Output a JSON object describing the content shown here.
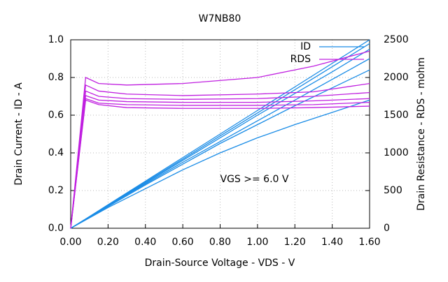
{
  "chart_data": {
    "type": "line",
    "title": "W7NB80",
    "x_label": "Drain-Source Voltage - VDS - V",
    "y_label": "Drain Current - ID - A",
    "y2_label": "Drain Resistance - RDS - mohm",
    "annotation": "VGS >= 6.0 V",
    "xlim": [
      0,
      1.6
    ],
    "xticks": [
      {
        "value": 0,
        "label": "0.00"
      },
      {
        "value": 0.2,
        "label": "0.20"
      },
      {
        "value": 0.4,
        "label": "0.40"
      },
      {
        "value": 0.6,
        "label": "0.60"
      },
      {
        "value": 0.8,
        "label": "0.80"
      },
      {
        "value": 1.0,
        "label": "1.00"
      },
      {
        "value": 1.2,
        "label": "1.20"
      },
      {
        "value": 1.4,
        "label": "1.40"
      },
      {
        "value": 1.6,
        "label": "1.60"
      }
    ],
    "ylim": [
      0,
      1
    ],
    "yticks": [
      {
        "value": 0,
        "label": "0.0"
      },
      0.2,
      0.4,
      0.6,
      0.8,
      {
        "value": 1,
        "label": "1.0"
      }
    ],
    "y2lim": [
      0,
      2500
    ],
    "y2ticks": [
      0,
      500,
      1000,
      1500,
      2000,
      2500
    ],
    "grid": true,
    "legend": "top-right",
    "series": [
      {
        "name": "ID",
        "color": "#1a8ce6",
        "x": [
          0,
          0.1,
          0.2,
          0.4,
          0.6,
          0.8,
          1.0,
          1.2,
          1.4,
          1.6
        ],
        "curves": [
          [
            0,
            0.062,
            0.125,
            0.25,
            0.375,
            0.5,
            0.625,
            0.75,
            0.875,
            1.0
          ],
          [
            0,
            0.061,
            0.122,
            0.245,
            0.367,
            0.49,
            0.612,
            0.735,
            0.857,
            0.98
          ],
          [
            0,
            0.06,
            0.12,
            0.24,
            0.36,
            0.48,
            0.6,
            0.715,
            0.83,
            0.95
          ],
          [
            0,
            0.06,
            0.12,
            0.235,
            0.35,
            0.46,
            0.57,
            0.68,
            0.79,
            0.9
          ],
          [
            0,
            0.058,
            0.115,
            0.23,
            0.34,
            0.45,
            0.55,
            0.65,
            0.745,
            0.84
          ],
          [
            0,
            0.055,
            0.11,
            0.21,
            0.31,
            0.4,
            0.48,
            0.55,
            0.615,
            0.68
          ]
        ]
      },
      {
        "name": "RDS",
        "color": "#c020e0",
        "axis": "y2",
        "x": [
          0,
          0.08,
          0.15,
          0.3,
          0.6,
          1.0,
          1.3,
          1.6
        ],
        "curves": [
          [
            0,
            2000,
            1920,
            1900,
            1920,
            2000,
            2150,
            2350
          ],
          [
            0,
            1900,
            1820,
            1780,
            1760,
            1780,
            1810,
            1920
          ],
          [
            0,
            1820,
            1750,
            1720,
            1710,
            1720,
            1750,
            1800
          ],
          [
            0,
            1760,
            1700,
            1680,
            1670,
            1670,
            1690,
            1720
          ],
          [
            0,
            1720,
            1660,
            1640,
            1630,
            1630,
            1640,
            1670
          ],
          [
            0,
            1700,
            1640,
            1600,
            1590,
            1590,
            1600,
            1620
          ]
        ]
      }
    ]
  }
}
